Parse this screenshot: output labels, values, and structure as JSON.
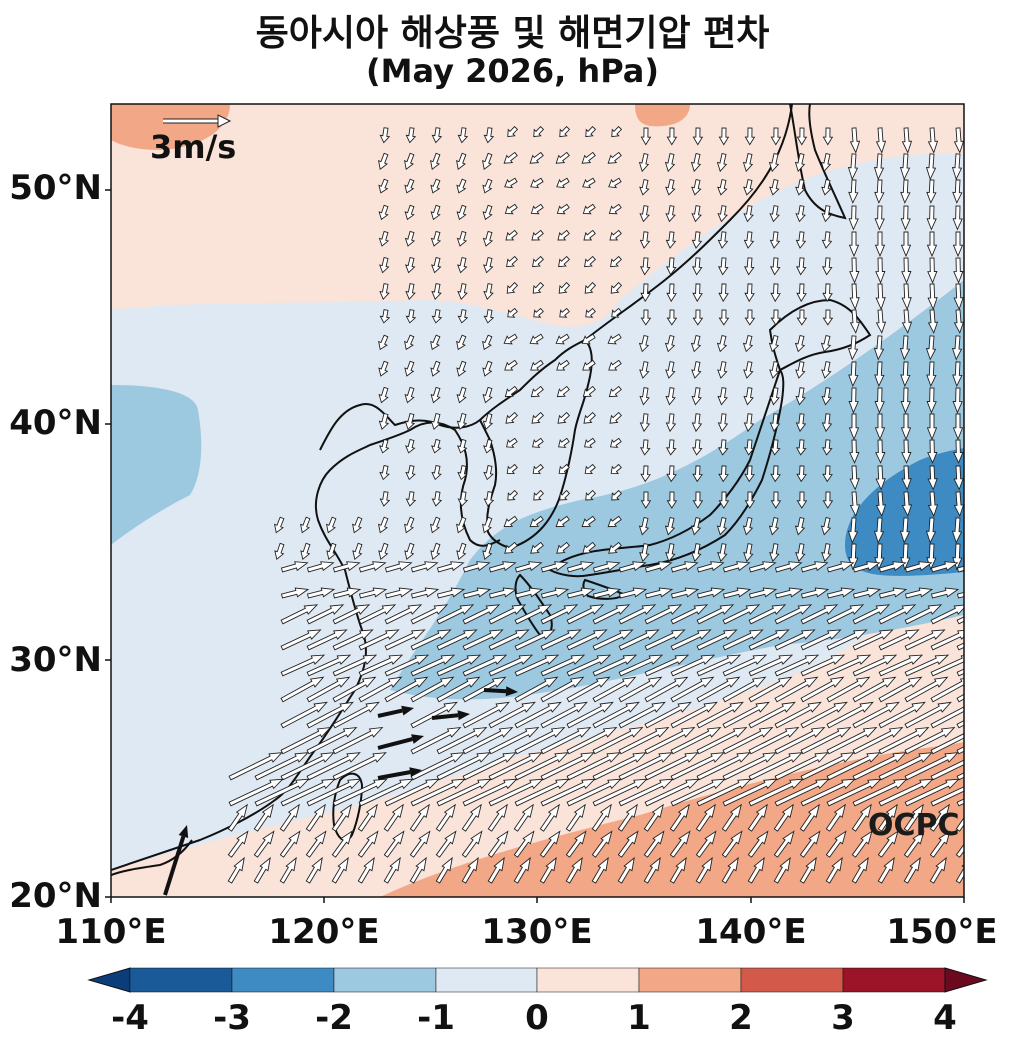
{
  "title": {
    "line1": "동아시아 해상풍 및 해면기압 편차",
    "line2": "(May 2026, hPa)"
  },
  "map": {
    "lon_range": [
      110,
      150
    ],
    "lat_range": [
      20,
      53.5
    ],
    "lat_ticks": [
      "20°N",
      "30°N",
      "40°N",
      "50°N"
    ],
    "lon_ticks": [
      "110°E",
      "120°E",
      "130°E",
      "140°E",
      "150°E"
    ],
    "reference_vector_label": "3m/s",
    "logo": "OCPC"
  },
  "colorbar": {
    "ticks": [
      "-4",
      "-3",
      "-2",
      "-1",
      "0",
      "1",
      "2",
      "3",
      "4"
    ],
    "colors": [
      "#0a3d7a",
      "#1b5a98",
      "#3e8bc4",
      "#9cc8e0",
      "#dfe9f3",
      "#fae3d8",
      "#f2a886",
      "#d35a4a",
      "#9b1428",
      "#6b0a1f"
    ]
  },
  "legend_colors": {
    "land_outline": "#111111",
    "arrow_strong": "#111111",
    "arrow_outline": "#222222"
  }
}
